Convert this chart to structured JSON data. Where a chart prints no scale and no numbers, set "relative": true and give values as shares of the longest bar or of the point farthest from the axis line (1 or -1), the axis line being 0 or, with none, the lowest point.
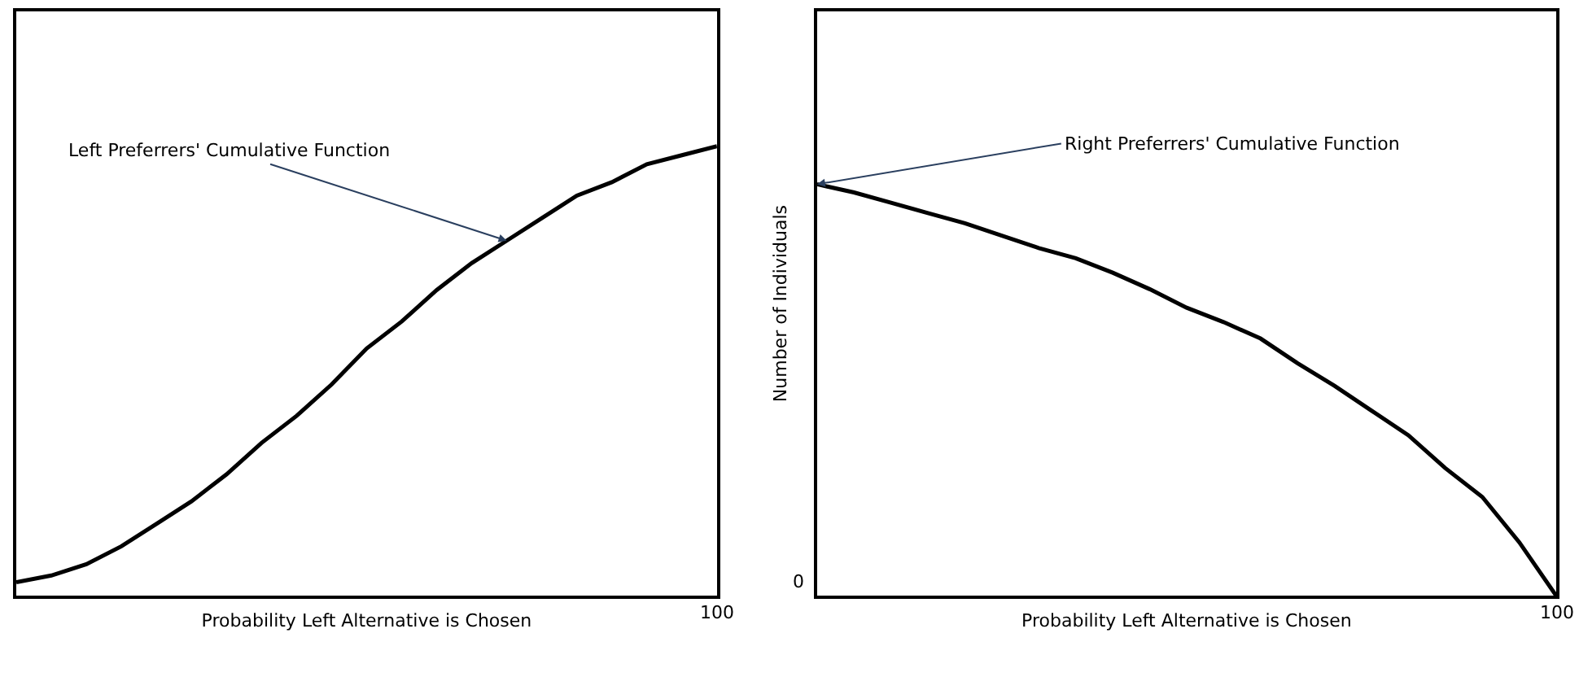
{
  "chart_data": [
    {
      "type": "line",
      "relative": true,
      "xlabel": "Probability Left Alternative is Chosen",
      "categories": [
        null,
        null,
        null,
        null,
        null,
        null,
        null,
        null,
        null,
        null,
        null,
        null,
        null,
        null,
        null,
        null,
        null,
        null,
        null,
        null,
        null
      ],
      "series": [
        {
          "color": "#000000",
          "values": [
            0.03,
            0.045,
            0.07,
            0.11,
            0.16,
            0.21,
            0.27,
            0.34,
            0.4,
            0.47,
            0.55,
            0.61,
            0.68,
            0.74,
            0.79,
            0.84,
            0.89,
            0.92,
            0.96,
            0.98,
            1
          ]
        }
      ],
      "annotations": [
        "Left Preferrers' Cumulative Function",
        "100"
      ],
      "marker": "none",
      "line_style": "solid"
    },
    {
      "type": "line",
      "relative": true,
      "xlabel": "Probability Left Alternative is Chosen",
      "ylabel": "Number of Individuals",
      "categories": [
        null,
        null,
        null,
        null,
        null,
        null,
        null,
        null,
        null,
        null,
        null,
        null,
        null,
        null,
        null,
        null,
        null,
        null,
        null,
        null,
        null
      ],
      "series": [
        {
          "color": "#000000",
          "values": [
            1,
            0.98,
            0.955,
            0.93,
            0.905,
            0.875,
            0.845,
            0.82,
            0.785,
            0.745,
            0.7,
            0.665,
            0.625,
            0.565,
            0.51,
            0.45,
            0.39,
            0.31,
            0.24,
            0.13,
            0
          ]
        }
      ],
      "annotations": [
        "Right Preferrers' Cumulative Function",
        "0",
        "100"
      ],
      "marker": "none",
      "line_style": "solid"
    }
  ]
}
